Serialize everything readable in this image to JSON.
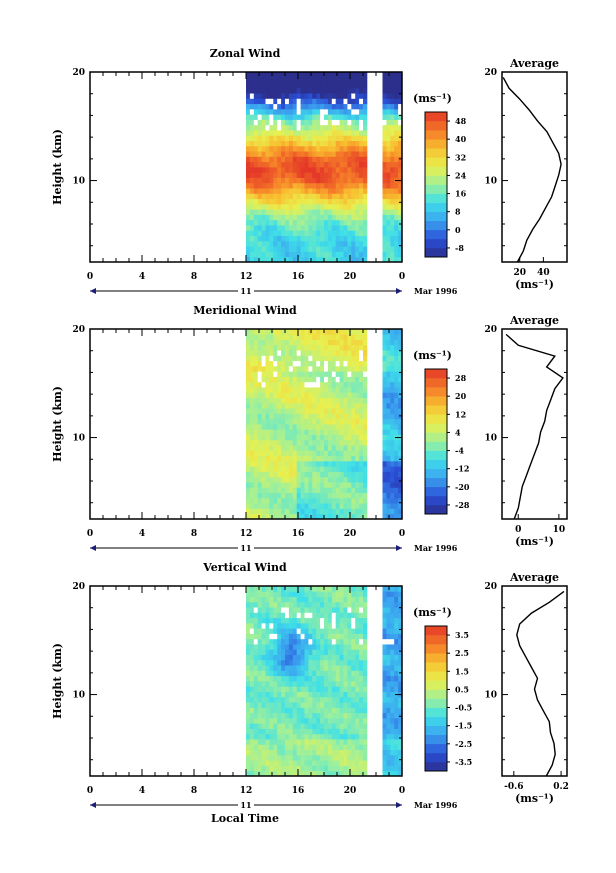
{
  "figure": {
    "x_axis_label": "Local Time",
    "date_label": "Mar 1996",
    "day_label": "11",
    "y_axis_label": "Height (km)",
    "average_title": "Average",
    "unit_label": "(ms⁻¹)"
  },
  "chart_data": [
    {
      "type": "heatmap",
      "title": "Zonal Wind",
      "ylabel": "Height (km)",
      "xlabel": "Local Time",
      "x_ticks": [
        "0",
        "4",
        "8",
        "12",
        "16",
        "20",
        "0"
      ],
      "xlim": [
        0,
        24
      ],
      "ylim": [
        2.5,
        20
      ],
      "y_ticks": [
        "10",
        "20"
      ],
      "data_x_range": [
        12,
        24
      ],
      "data_gap": [
        21.2,
        22.6
      ],
      "colorbar": {
        "label": "(ms⁻¹)",
        "ticks": [
          "48",
          "40",
          "32",
          "24",
          "16",
          "8",
          "0",
          "-8"
        ],
        "range": [
          -12,
          52
        ]
      },
      "profile": {
        "title": "Average",
        "xlabel": "(ms⁻¹)",
        "x_ticks": [
          "20",
          "40"
        ],
        "xlim": [
          5,
          60
        ],
        "heights": [
          2.5,
          3.5,
          4.5,
          5.5,
          6.5,
          7.5,
          8.5,
          9.5,
          10.5,
          11.5,
          12.5,
          13.5,
          14.5,
          15.5,
          16.5,
          17.5,
          18.5,
          19.5
        ],
        "values": [
          18,
          23,
          26,
          31,
          37,
          42,
          47,
          50,
          53,
          55,
          53,
          48,
          43,
          35,
          28,
          20,
          11,
          6
        ]
      }
    },
    {
      "type": "heatmap",
      "title": "Meridional Wind",
      "ylabel": "Height (km)",
      "xlabel": "Local Time",
      "x_ticks": [
        "0",
        "4",
        "8",
        "12",
        "16",
        "20",
        "0"
      ],
      "xlim": [
        0,
        24
      ],
      "ylim": [
        2.5,
        20
      ],
      "y_ticks": [
        "10",
        "20"
      ],
      "data_x_range": [
        12,
        24
      ],
      "data_gap": [
        21.2,
        22.6
      ],
      "colorbar": {
        "label": "(ms⁻¹)",
        "ticks": [
          "28",
          "20",
          "12",
          "4",
          "-4",
          "-12",
          "-20",
          "-28"
        ],
        "range": [
          -32,
          32
        ]
      },
      "profile": {
        "title": "Average",
        "xlabel": "(ms⁻¹)",
        "x_ticks": [
          "0",
          "10"
        ],
        "xlim": [
          -4,
          12
        ],
        "heights": [
          2.5,
          3.5,
          4.5,
          5.5,
          6.5,
          7.5,
          8.5,
          9.5,
          10.5,
          11.5,
          12.5,
          13.5,
          14.5,
          15.5,
          16.5,
          17.5,
          18.5,
          19.5
        ],
        "values": [
          -1,
          0,
          0.5,
          1,
          2,
          3,
          4,
          5,
          5.5,
          6.5,
          7,
          8,
          9,
          11,
          7,
          9,
          0,
          -3
        ]
      }
    },
    {
      "type": "heatmap",
      "title": "Vertical Wind",
      "ylabel": "Height (km)",
      "xlabel": "Local Time",
      "x_ticks": [
        "0",
        "4",
        "8",
        "12",
        "16",
        "20",
        "0"
      ],
      "xlim": [
        0,
        24
      ],
      "ylim": [
        2.5,
        20
      ],
      "y_ticks": [
        "10",
        "20"
      ],
      "data_x_range": [
        12,
        24
      ],
      "data_gap": [
        21.2,
        22.6
      ],
      "colorbar": {
        "label": "(ms⁻¹)",
        "ticks": [
          "3.5",
          "2.5",
          "1.5",
          "0.5",
          "-0.5",
          "-1.5",
          "-2.5",
          "-3.5"
        ],
        "range": [
          -4,
          4
        ]
      },
      "profile": {
        "title": "Average",
        "xlabel": "(ms⁻¹)",
        "x_ticks": [
          "-0.6",
          "0.2"
        ],
        "xlim": [
          -0.8,
          0.3
        ],
        "heights": [
          2.5,
          3.5,
          4.5,
          5.5,
          6.5,
          7.5,
          8.5,
          9.5,
          10.5,
          11.5,
          12.5,
          13.5,
          14.5,
          15.5,
          16.5,
          17.5,
          18.5,
          19.5
        ],
        "values": [
          -0.05,
          0.05,
          0.1,
          0.08,
          0.02,
          0.0,
          -0.1,
          -0.2,
          -0.25,
          -0.2,
          -0.3,
          -0.4,
          -0.5,
          -0.55,
          -0.5,
          -0.3,
          0.0,
          0.25
        ]
      }
    }
  ]
}
